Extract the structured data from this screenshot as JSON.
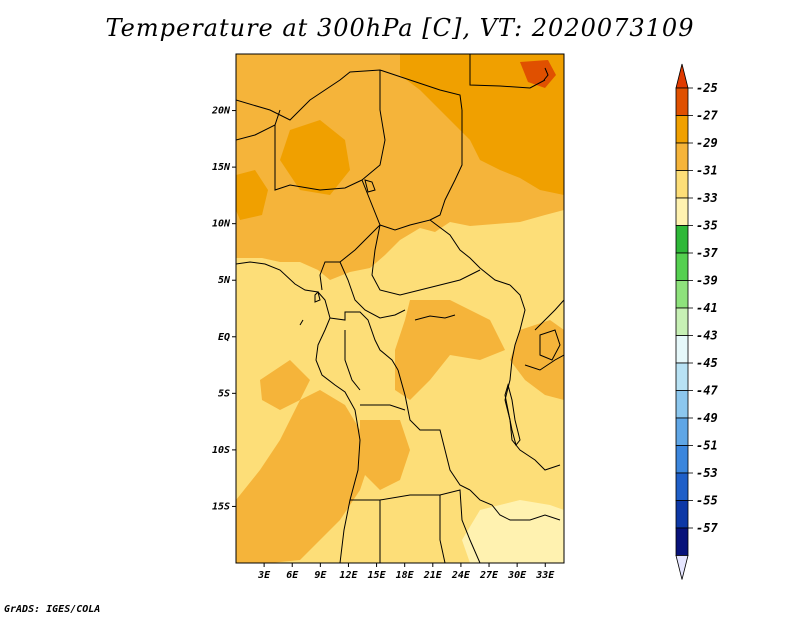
{
  "title": "Temperature at 300hPa [C], VT: 2020073109",
  "credit": "GrADS: IGES/COLA",
  "map": {
    "lat_labels": [
      "20N",
      "15N",
      "10N",
      "5N",
      "EQ",
      "5S",
      "10S",
      "15S"
    ],
    "lat_values": [
      20,
      15,
      10,
      5,
      0,
      -5,
      -10,
      -15
    ],
    "lon_labels": [
      "3E",
      "6E",
      "9E",
      "12E",
      "15E",
      "18E",
      "21E",
      "24E",
      "27E",
      "30E",
      "33E"
    ],
    "lon_values": [
      3,
      6,
      9,
      12,
      15,
      18,
      21,
      24,
      27,
      30,
      33
    ],
    "lon_range": [
      0,
      35
    ],
    "lat_range": [
      -20,
      25
    ]
  },
  "colorbar": {
    "labels": [
      "-25",
      "-27",
      "-29",
      "-31",
      "-33",
      "-35",
      "-37",
      "-39",
      "-41",
      "-43",
      "-45",
      "-47",
      "-49",
      "-51",
      "-53",
      "-55",
      "-57"
    ],
    "colors": [
      "#e05000",
      "#f0a000",
      "#f5b43a",
      "#fdde78",
      "#fff2b0",
      "#2eb838",
      "#55d050",
      "#8ee27c",
      "#c7f0b5",
      "#e6f8fa",
      "#b8e2f4",
      "#8cc7ee",
      "#5fa6e6",
      "#3b86dd",
      "#1f5fc8",
      "#0d38a6",
      "#07127a"
    ],
    "top_cap": "#e03a00",
    "bottom_cap": "#e6e6ff"
  }
}
